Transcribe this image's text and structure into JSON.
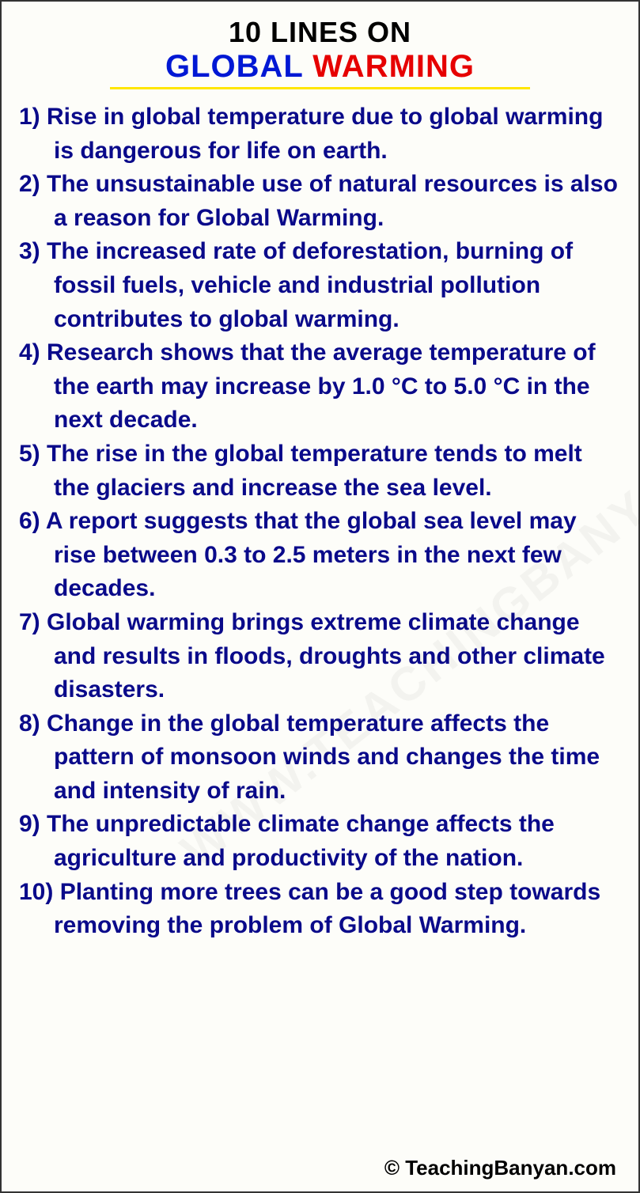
{
  "title": {
    "line1": "10 LINES ON",
    "line2_word1": "GLOBAL",
    "line2_word2": "WARMING"
  },
  "colors": {
    "title_black": "#000000",
    "title_blue": "#0018d4",
    "title_red": "#e60000",
    "underline_yellow": "#ffe600",
    "body_text": "#0a0a8a",
    "background": "#fdfdf9",
    "border": "#333333"
  },
  "typography": {
    "title_fontsize": 36,
    "subtitle_fontsize": 40,
    "body_fontsize": 30,
    "footer_fontsize": 26,
    "font_family": "Arial",
    "body_weight": 700
  },
  "items": [
    "1) Rise in global temperature due to global warming is dangerous for life on earth.",
    "2) The unsustainable use of natural resources is also a reason for Global Warming.",
    "3) The increased rate of deforestation, burning of fossil fuels, vehicle and industrial pollution contributes to global warming.",
    "4) Research shows that the average temperature of the earth may increase by 1.0 °C to 5.0 °C in the next decade.",
    "5) The rise in the global temperature tends to melt the glaciers and increase the sea level.",
    "6) A report suggests that the global sea level may rise between 0.3 to 2.5 meters in the next few decades.",
    "7) Global warming brings extreme climate change and results in floods, droughts and other climate disasters.",
    "8) Change in the global temperature affects the pattern of monsoon winds and changes the time and intensity of rain.",
    "9) The unpredictable climate change affects the agriculture and productivity of the nation.",
    "10) Planting more trees can be a good step towards removing the problem of Global Warming."
  ],
  "watermark": "WWW.TEACHINGBANYAN.COM",
  "footer": "© TeachingBanyan.com"
}
